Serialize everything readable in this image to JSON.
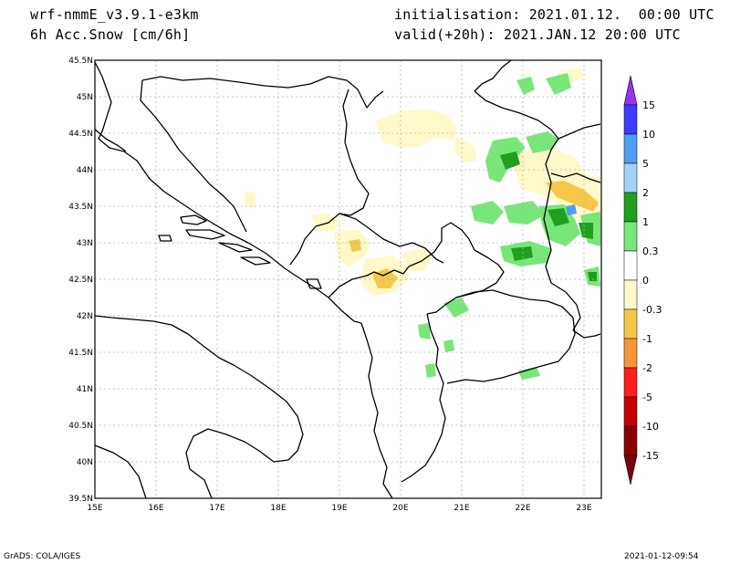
{
  "header": {
    "model": "wrf-nmmE_v3.9.1-e3km",
    "field": "6h Acc.Snow [cm/6h]",
    "initialisation": "initialisation: 2021.01.12.  00:00 UTC",
    "valid": "valid(+20h): 2021.JAN.12 20:00 UTC"
  },
  "footer": {
    "credit": "GrADS: COLA/IGES",
    "timestamp": "2021-01-12-09:54"
  },
  "map": {
    "lon_labels": [
      "15E",
      "16E",
      "17E",
      "18E",
      "19E",
      "20E",
      "21E",
      "22E",
      "23E"
    ],
    "lat_labels": [
      "45.5N",
      "45N",
      "44.5N",
      "44N",
      "43.5N",
      "43N",
      "42.5N",
      "42N",
      "41.5N",
      "41N",
      "40.5N",
      "40N",
      "39.5N"
    ]
  },
  "colorbar": {
    "labels": [
      "15",
      "10",
      "5",
      "2",
      "1",
      "0.3",
      "0",
      "-0.3",
      "-1",
      "-2",
      "-5",
      "-10",
      "-15"
    ],
    "colors": [
      "#9a32f0",
      "#3c3cff",
      "#4f9cf0",
      "#a0d2fa",
      "#1ea01e",
      "#78e678",
      "#ffffff",
      "#fff8c8",
      "#f5c84a",
      "#f5963c",
      "#ff1e1e",
      "#c80000",
      "#8c0000",
      "#7a0014"
    ]
  },
  "colors": {
    "light_green": "#78e678",
    "dark_green": "#1ea01e",
    "pale_yellow": "#fff8c8",
    "orange_yellow": "#f5c84a",
    "blue": "#4f9cf0"
  }
}
